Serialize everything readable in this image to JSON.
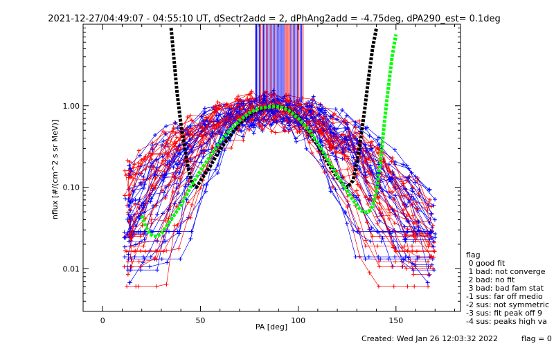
{
  "header": {
    "title": "2021-12-27/04:49:07 - 04:55:10 UT, dSectr2add = 2, dPhAng2add = -4.75deg, dPA290_est=   0.1deg"
  },
  "footer": {
    "created": "Created: Wed Jan 26 12:03:32 2022",
    "flag": "flag = 0"
  },
  "legend": {
    "title": "flag",
    "items": [
      " 0 good fit",
      " 1 bad: not converge",
      " 2 bad: no fit",
      " 3 bad: bad fam stat",
      "-1 sus: far off medio",
      "-2 sus: not symmetric",
      "-3 sus: fit peak off 9",
      "-4 sus: peaks high va"
    ]
  },
  "colors": {
    "red": "#ff0000",
    "blue": "#0000ff",
    "black": "#000000",
    "green": "#00ff00",
    "axis": "#000000"
  },
  "chart_data": {
    "type": "line",
    "title": "2021-12-27/04:49:07 - 04:55:10 UT, dSectr2add = 2, dPhAng2add = -4.75deg, dPA290_est=   0.1deg",
    "xlabel": "PA [deg]",
    "ylabel": "nflux [#/(cm^2 s sr MeV)]",
    "xlim": [
      -10,
      183
    ],
    "ylim": [
      0.003,
      10
    ],
    "yscale": "log",
    "xticks": [
      0,
      50,
      100,
      150
    ],
    "yticks": [
      0.01,
      0.1,
      1.0
    ],
    "ytick_labels": [
      "0.01",
      "0.10",
      "1.00"
    ],
    "fit_curves": [
      {
        "color": "black",
        "x": [
          35,
          38,
          40,
          42,
          44,
          46,
          48,
          50,
          55,
          60,
          65,
          70,
          75,
          80,
          85,
          88,
          92,
          95,
          100,
          105,
          110,
          115,
          120,
          125,
          128,
          130,
          132,
          134,
          136,
          138,
          140
        ],
        "y": [
          9,
          1.5,
          0.6,
          0.3,
          0.16,
          0.11,
          0.1,
          0.12,
          0.18,
          0.29,
          0.42,
          0.6,
          0.78,
          0.9,
          0.96,
          0.98,
          0.96,
          0.9,
          0.72,
          0.5,
          0.33,
          0.2,
          0.13,
          0.1,
          0.12,
          0.2,
          0.4,
          0.9,
          2.2,
          5.0,
          9.0
        ]
      },
      {
        "color": "green",
        "x": [
          20,
          22,
          24,
          26,
          28,
          30,
          35,
          40,
          45,
          50,
          55,
          60,
          65,
          70,
          75,
          80,
          85,
          88,
          92,
          95,
          100,
          105,
          110,
          115,
          120,
          125,
          128,
          130,
          132,
          134,
          136,
          138,
          140,
          142,
          144,
          146,
          148,
          150
        ],
        "y": [
          0.045,
          0.033,
          0.027,
          0.025,
          0.025,
          0.027,
          0.04,
          0.06,
          0.1,
          0.16,
          0.24,
          0.36,
          0.5,
          0.66,
          0.82,
          0.93,
          0.97,
          0.98,
          0.95,
          0.88,
          0.7,
          0.52,
          0.35,
          0.22,
          0.14,
          0.09,
          0.07,
          0.06,
          0.052,
          0.049,
          0.05,
          0.058,
          0.09,
          0.2,
          0.6,
          1.6,
          4.0,
          7.5
        ]
      }
    ],
    "vertical_marks_xrange": [
      78,
      103
    ],
    "vertical_marks_yrange": [
      1.1,
      10
    ],
    "data_series_note": "Many red and blue per-sector pitch-angle distributions with + markers, all peaking near PA 90 at ~1.0"
  }
}
